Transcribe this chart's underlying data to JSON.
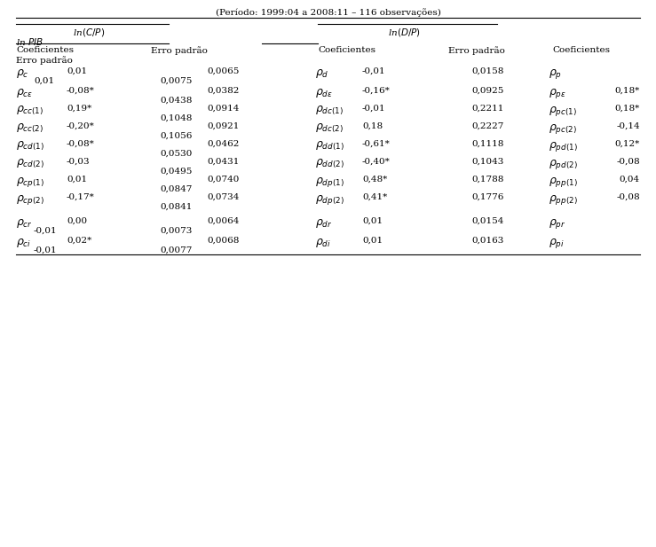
{
  "title": "(Período: 1999:04 a 2008:11 – 116 observações)",
  "bg_color": "#ffffff",
  "text_color": "#000000",
  "font_size": 7.5,
  "rho_font_size": 9.0,
  "rows": [
    {
      "sym_c": "rho_c",
      "coef_c": "0,01",
      "err_c1": "0,0065",
      "coef_c2": "0,01",
      "err_c2": "0,0075",
      "sym_d": "rho_d",
      "coef_d": "-0,01",
      "err_d": "0,0158",
      "sym_p": "rho_p",
      "coef_p": "",
      "two_line_p": true
    },
    {
      "sym_c": "rho_ce",
      "coef_c": "-0,08*",
      "err_c1": "0,0382",
      "coef_c2": "",
      "err_c2": "0,0438",
      "sym_d": "rho_de",
      "coef_d": "-0,16*",
      "err_d": "0,0925",
      "sym_p": "rho_pe",
      "coef_p": "0,18*",
      "two_line_p": false
    },
    {
      "sym_c": "rho_cc1",
      "coef_c": "0,19*",
      "err_c1": "0,0914",
      "coef_c2": "",
      "err_c2": "0,1048",
      "sym_d": "rho_dc1",
      "coef_d": "-0,01",
      "err_d": "0,2211",
      "sym_p": "rho_pc1",
      "coef_p": "0,18*",
      "two_line_p": false
    },
    {
      "sym_c": "rho_cc2",
      "coef_c": "-0,20*",
      "err_c1": "0,0921",
      "coef_c2": "",
      "err_c2": "0,1056",
      "sym_d": "rho_dc2",
      "coef_d": "0,18",
      "err_d": "0,2227",
      "sym_p": "rho_pc2",
      "coef_p": "-0,14",
      "two_line_p": false
    },
    {
      "sym_c": "rho_cd1",
      "coef_c": "-0,08*",
      "err_c1": "0,0462",
      "coef_c2": "",
      "err_c2": "0,0530",
      "sym_d": "rho_dd1",
      "coef_d": "-0,61*",
      "err_d": "0,1118",
      "sym_p": "rho_pd1",
      "coef_p": "0,12*",
      "two_line_p": false
    },
    {
      "sym_c": "rho_cd2",
      "coef_c": "-0,03",
      "err_c1": "0,0431",
      "coef_c2": "",
      "err_c2": "0,0495",
      "sym_d": "rho_dd2",
      "coef_d": "-0,40*",
      "err_d": "0,1043",
      "sym_p": "rho_pd2",
      "coef_p": "-0,08",
      "two_line_p": false
    },
    {
      "sym_c": "rho_cp1",
      "coef_c": "0,01",
      "err_c1": "0,0740",
      "coef_c2": "",
      "err_c2": "0,0847",
      "sym_d": "rho_dp1",
      "coef_d": "0,48*",
      "err_d": "0,1788",
      "sym_p": "rho_pp1",
      "coef_p": "0,04",
      "two_line_p": false
    },
    {
      "sym_c": "rho_cp2",
      "coef_c": "-0,17*",
      "err_c1": "0,0734",
      "coef_c2": "",
      "err_c2": "0,0841",
      "sym_d": "rho_dp2",
      "coef_d": "0,41*",
      "err_d": "0,1776",
      "sym_p": "rho_pp2",
      "coef_p": "-0,08",
      "two_line_p": false
    },
    {
      "sym_c": "rho_cr",
      "coef_c": "0,00",
      "err_c1": "0,0064",
      "coef_c2": "-0,01",
      "err_c2": "0,0073",
      "sym_d": "rho_dr",
      "coef_d": "0,01",
      "err_d": "0,0154",
      "sym_p": "rho_pr",
      "coef_p": "",
      "two_line_p": true
    },
    {
      "sym_c": "rho_ci",
      "coef_c": "0,02*",
      "err_c1": "0,0068",
      "coef_c2": "-0,01",
      "err_c2": "0,0077",
      "sym_d": "rho_di",
      "coef_d": "0,01",
      "err_d": "0,0163",
      "sym_p": "rho_pi",
      "coef_p": "",
      "two_line_p": true
    }
  ]
}
